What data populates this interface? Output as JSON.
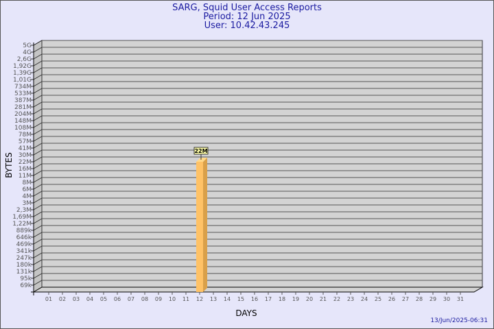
{
  "header": {
    "title": "SARG, Squid User Access Reports",
    "period": "Period: 12 Jun 2025",
    "user": "User: 10.42.43.245"
  },
  "footer": {
    "timestamp": "13/Jun/2025-06:31"
  },
  "chart_data": {
    "type": "bar",
    "xlabel": "DAYS",
    "ylabel": "BYTES",
    "y_ticks": [
      "5G",
      "4G",
      "2,6G",
      "1,92G",
      "1,39G",
      "1,01G",
      "734M",
      "533M",
      "387M",
      "281M",
      "204M",
      "148M",
      "108M",
      "78M",
      "57M",
      "41M",
      "30M",
      "22M",
      "16M",
      "11M",
      "8M",
      "6M",
      "4M",
      "3M",
      "2,3M",
      "1,69M",
      "1,22M",
      "889k",
      "646k",
      "469k",
      "341k",
      "247k",
      "180k",
      "131k",
      "95k",
      "69k"
    ],
    "categories": [
      "01",
      "02",
      "03",
      "04",
      "05",
      "06",
      "07",
      "08",
      "09",
      "10",
      "11",
      "12",
      "13",
      "14",
      "15",
      "16",
      "17",
      "18",
      "19",
      "20",
      "21",
      "22",
      "23",
      "24",
      "25",
      "26",
      "27",
      "28",
      "29",
      "30",
      "31"
    ],
    "bars": [
      {
        "day": "12",
        "value": "22M",
        "label": "22M"
      }
    ],
    "y_scale": "log",
    "grid": true,
    "colors": {
      "bar_front": "#ffc266",
      "bar_side": "#d9a04a",
      "plot": "#d3d3d3",
      "background": "#e6e6fa",
      "title": "#1a1aa0"
    }
  }
}
